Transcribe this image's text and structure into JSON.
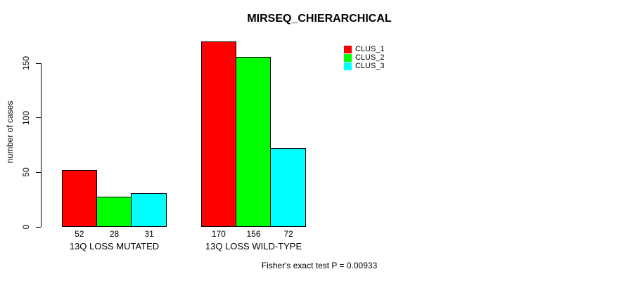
{
  "page": {
    "background": "#ffffff",
    "text_color": "#000000"
  },
  "chart_data": {
    "type": "bar",
    "title": "MIRSEQ_CHIERARCHICAL",
    "xlabel": "",
    "ylabel": "number of cases",
    "categories": [
      "13Q LOSS MUTATED",
      "13Q LOSS WILD-TYPE"
    ],
    "series": [
      {
        "name": "CLUS_1",
        "color": "#ff0000",
        "values": [
          52,
          170
        ]
      },
      {
        "name": "CLUS_2",
        "color": "#00ff00",
        "values": [
          28,
          156
        ]
      },
      {
        "name": "CLUS_3",
        "color": "#00ffff",
        "values": [
          31,
          72
        ]
      }
    ],
    "value_labels": [
      [
        52,
        28,
        31
      ],
      [
        170,
        156,
        72
      ]
    ],
    "yticks": [
      0,
      50,
      100,
      150
    ],
    "ylim": [
      0,
      175
    ],
    "grid": false,
    "legend_position": "top-right",
    "legend_entries": [
      "CLUS_1",
      "CLUS_2",
      "CLUS_3"
    ],
    "footnote": "Fisher's exact test P = 0.00933"
  }
}
